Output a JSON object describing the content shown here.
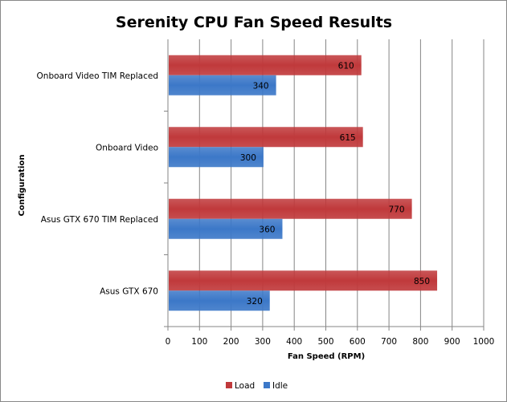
{
  "chart_data": {
    "type": "bar",
    "orientation": "horizontal",
    "title": "Serenity CPU Fan Speed Results",
    "xlabel": "Fan Speed (RPM)",
    "ylabel": "Configuration",
    "categories": [
      "Onboard Video TIM Replaced",
      "Onboard Video",
      "Asus GTX 670 TIM Replaced",
      "Asus GTX 670"
    ],
    "series": [
      {
        "name": "Load",
        "color": "#C0393B",
        "values": [
          610,
          615,
          770,
          850
        ]
      },
      {
        "name": "Idle",
        "color": "#3C78C8",
        "values": [
          340,
          300,
          360,
          320
        ]
      }
    ],
    "xlim": [
      0,
      1000
    ],
    "xticks": [
      "0",
      "100",
      "200",
      "300",
      "400",
      "500",
      "600",
      "700",
      "800",
      "900",
      "1000"
    ],
    "grid": true,
    "legend": "bottom"
  }
}
